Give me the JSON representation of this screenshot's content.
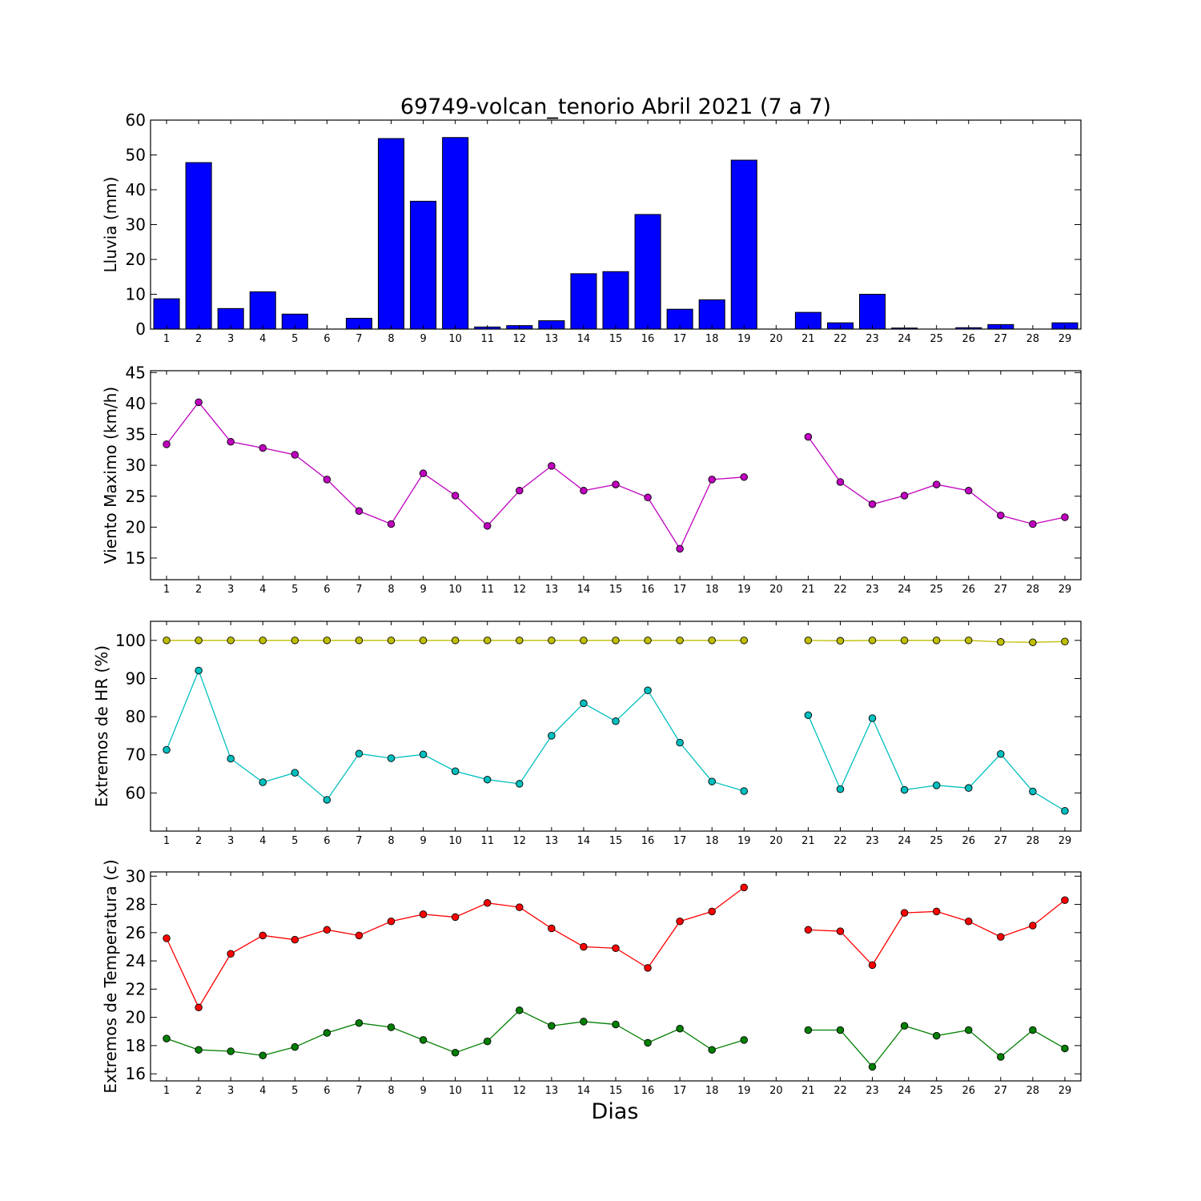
{
  "figure": {
    "title": "69749-volcan_tenorio Abril 2021  (7 a 7)",
    "xlabel": "Dias"
  },
  "chart_data": [
    {
      "type": "bar",
      "ylabel": "Lluvia (mm)",
      "ylim": [
        0,
        60
      ],
      "yticks": [
        0,
        10,
        20,
        30,
        40,
        50,
        60
      ],
      "color": "#0000ff",
      "categories": [
        1,
        2,
        3,
        4,
        5,
        6,
        7,
        8,
        9,
        10,
        11,
        12,
        13,
        14,
        15,
        16,
        17,
        18,
        19,
        20,
        21,
        22,
        23,
        24,
        25,
        26,
        27,
        28,
        29
      ],
      "values": [
        8.7,
        47.8,
        5.9,
        10.7,
        4.3,
        0,
        3.1,
        54.7,
        36.7,
        55.0,
        0.6,
        1.0,
        2.4,
        15.9,
        16.5,
        32.9,
        5.7,
        8.4,
        48.5,
        0,
        4.8,
        1.8,
        10.0,
        0.3,
        0,
        0.4,
        1.3,
        0,
        1.8
      ]
    },
    {
      "type": "line",
      "ylabel": "Viento Maximo (km/h)",
      "ylim": [
        11.5,
        45.3
      ],
      "yticks": [
        15,
        20,
        25,
        30,
        35,
        40,
        45
      ],
      "x": [
        1,
        2,
        3,
        4,
        5,
        6,
        7,
        8,
        9,
        10,
        11,
        12,
        13,
        14,
        15,
        16,
        17,
        18,
        19,
        20,
        21,
        22,
        23,
        24,
        25,
        26,
        27,
        28,
        29
      ],
      "series": [
        {
          "color": "#bf00bf",
          "values": [
            33.4,
            40.2,
            33.8,
            32.8,
            31.7,
            27.7,
            22.6,
            20.5,
            28.7,
            25.1,
            20.2,
            25.9,
            29.9,
            25.9,
            26.9,
            24.8,
            16.5,
            27.7,
            28.1,
            null,
            34.6,
            27.3,
            23.7,
            25.1,
            26.9,
            25.9,
            21.9,
            20.5,
            21.6
          ]
        }
      ]
    },
    {
      "type": "line",
      "ylabel": "Extremos de HR (%)",
      "ylim": [
        50,
        105
      ],
      "yticks": [
        60,
        70,
        80,
        90,
        100
      ],
      "x": [
        1,
        2,
        3,
        4,
        5,
        6,
        7,
        8,
        9,
        10,
        11,
        12,
        13,
        14,
        15,
        16,
        17,
        18,
        19,
        20,
        21,
        22,
        23,
        24,
        25,
        26,
        27,
        28,
        29
      ],
      "series": [
        {
          "color": "#bfbf00",
          "values": [
            100,
            100,
            100,
            100,
            100,
            100,
            100,
            100,
            100,
            100,
            100,
            100,
            100,
            100,
            100,
            100,
            100,
            100,
            100,
            null,
            100,
            99.9,
            100,
            100,
            100,
            100,
            99.6,
            99.5,
            99.7
          ]
        },
        {
          "color": "#00bfbf",
          "values": [
            71.3,
            92.1,
            69.0,
            62.8,
            65.3,
            58.2,
            70.3,
            69.1,
            70.1,
            65.7,
            63.5,
            62.4,
            75.0,
            83.5,
            78.8,
            86.9,
            73.2,
            63.0,
            60.5,
            null,
            80.4,
            61.0,
            79.6,
            60.8,
            62.0,
            61.3,
            70.2,
            60.4,
            55.3
          ]
        }
      ]
    },
    {
      "type": "line",
      "ylabel": "Extremos de Temperatura (c)",
      "ylim": [
        15.5,
        30.3
      ],
      "yticks": [
        16,
        18,
        20,
        22,
        24,
        26,
        28,
        30
      ],
      "x": [
        1,
        2,
        3,
        4,
        5,
        6,
        7,
        8,
        9,
        10,
        11,
        12,
        13,
        14,
        15,
        16,
        17,
        18,
        19,
        20,
        21,
        22,
        23,
        24,
        25,
        26,
        27,
        28,
        29
      ],
      "series": [
        {
          "color": "#ff0000",
          "values": [
            25.6,
            20.7,
            24.5,
            25.8,
            25.5,
            26.2,
            25.8,
            26.8,
            27.3,
            27.1,
            28.1,
            27.8,
            26.3,
            25.0,
            24.9,
            23.5,
            26.8,
            27.5,
            29.2,
            null,
            26.2,
            26.1,
            23.7,
            27.4,
            27.5,
            26.8,
            25.7,
            26.5,
            28.3
          ]
        },
        {
          "color": "#007f00",
          "values": [
            18.5,
            17.7,
            17.6,
            17.3,
            17.9,
            18.9,
            19.6,
            19.3,
            18.4,
            17.5,
            18.3,
            20.5,
            19.4,
            19.7,
            19.5,
            18.2,
            19.2,
            17.7,
            18.4,
            null,
            19.1,
            19.1,
            16.5,
            19.4,
            18.7,
            19.1,
            17.2,
            19.1,
            17.8
          ]
        }
      ]
    }
  ]
}
